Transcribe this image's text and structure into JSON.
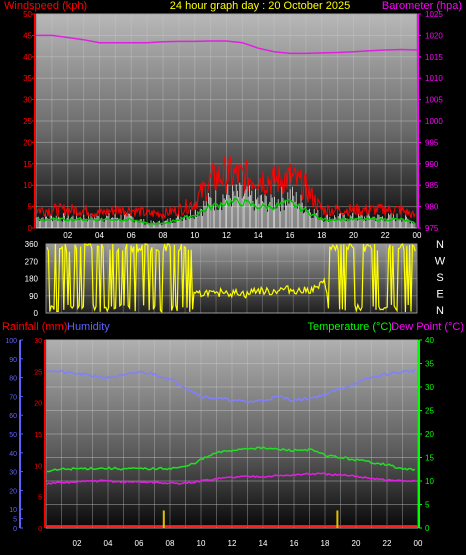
{
  "header": {
    "title": "24 hour graph day : 20 October 2025",
    "windspeed_label": "Windspeed (kph)",
    "barometer_label": "Barometer (hpa)",
    "rainfall_label": "Rainfall (mm)",
    "humidity_label": "Humidity",
    "temperature_label": "Temperature (°C)",
    "dewpoint_label": "Dew Point (°C)"
  },
  "colors": {
    "wind_gust": "#ff0000",
    "wind_avg": "#00c800",
    "wind_bg": "#ffffff",
    "barometer": "#e020e0",
    "direction": "#ffff00",
    "humidity": "#8080ff",
    "temperature": "#20e020",
    "dewpoint": "#e020e0",
    "rainfall": "#ff2020",
    "rain_bars": "#e0c000",
    "axis_red": "#ff0000",
    "axis_magenta": "#ff00ff",
    "axis_green": "#00ff00",
    "axis_blue": "#6060ff",
    "title": "#ffff00"
  },
  "chart_data": [
    {
      "type": "line",
      "name": "wind-barometer",
      "x_ticks": [
        "02",
        "04",
        "06",
        "08",
        "10",
        "12",
        "14",
        "16",
        "18",
        "20",
        "22",
        "00"
      ],
      "left_axis": {
        "label": "Windspeed (kph)",
        "range": [
          0,
          50
        ],
        "ticks": [
          "0",
          "5",
          "10",
          "15",
          "20",
          "25",
          "30",
          "35",
          "40",
          "45",
          "50"
        ]
      },
      "right_axis": {
        "label": "Barometer (hpa)",
        "range": [
          975,
          1025
        ],
        "ticks": [
          "975",
          "980",
          "985",
          "990",
          "995",
          "1000",
          "1005",
          "1010",
          "1015",
          "1020",
          "1025"
        ]
      },
      "series": [
        {
          "name": "Barometer",
          "axis": "right",
          "x": [
            0,
            1,
            2,
            3,
            4,
            5,
            6,
            7,
            8,
            9,
            10,
            11,
            12,
            13,
            14,
            15,
            16,
            17,
            18,
            19,
            20,
            21,
            22,
            23,
            24
          ],
          "values": [
            1020.0,
            1020.0,
            1019.5,
            1019.0,
            1018.3,
            1018.3,
            1018.3,
            1018.3,
            1018.5,
            1018.6,
            1018.6,
            1018.7,
            1018.7,
            1018.3,
            1017.0,
            1016.2,
            1015.8,
            1015.8,
            1015.9,
            1016.0,
            1016.2,
            1016.4,
            1016.6,
            1016.7,
            1016.6
          ]
        },
        {
          "name": "Wind gust",
          "axis": "left",
          "x": [
            0,
            1,
            2,
            3,
            4,
            5,
            6,
            7,
            8,
            9,
            10,
            11,
            12,
            13,
            14,
            15,
            16,
            17,
            18,
            19,
            20,
            21,
            22,
            23,
            24
          ],
          "values": [
            5,
            5,
            5,
            5,
            4,
            5,
            5,
            4,
            4,
            5,
            7,
            13,
            15,
            14,
            14,
            13,
            14,
            11,
            5,
            5,
            5,
            5,
            5,
            5,
            3
          ]
        },
        {
          "name": "Wind average",
          "axis": "left",
          "x": [
            0,
            1,
            2,
            3,
            4,
            5,
            6,
            7,
            8,
            9,
            10,
            11,
            12,
            13,
            14,
            15,
            16,
            17,
            18,
            19,
            20,
            21,
            22,
            23,
            24
          ],
          "values": [
            2,
            2,
            2,
            2,
            2,
            2,
            2,
            1,
            1,
            2,
            3,
            5,
            6,
            6,
            5,
            5,
            6,
            4,
            2,
            2,
            2,
            2,
            2,
            2,
            1
          ]
        }
      ]
    },
    {
      "type": "scatter",
      "name": "wind-direction",
      "x_ticks": [
        "02",
        "04",
        "06",
        "08",
        "10",
        "12",
        "14",
        "16",
        "18",
        "20",
        "22",
        "00"
      ],
      "left_axis": {
        "range": [
          0,
          360
        ],
        "ticks": [
          "0",
          "90",
          "180",
          "270",
          "360"
        ]
      },
      "right_labels": [
        "N",
        "W",
        "S",
        "E",
        "N"
      ],
      "series": [
        {
          "name": "Direction",
          "x": [
            0,
            0.5,
            1,
            1.5,
            2,
            2.5,
            3,
            3.5,
            4,
            4.5,
            5,
            5.5,
            6,
            6.5,
            7,
            7.5,
            8,
            8.5,
            9,
            9.5,
            10,
            10.5,
            11,
            11.5,
            12,
            12.5,
            13,
            13.5,
            14,
            14.5,
            15,
            15.5,
            16,
            16.5,
            17,
            17.5,
            18,
            18.5,
            19,
            19.5,
            20,
            20.5,
            21,
            21.5,
            22,
            22.5,
            23,
            23.5,
            24
          ],
          "values": [
            340,
            10,
            340,
            20,
            350,
            0,
            330,
            10,
            320,
            300,
            10,
            310,
            0,
            330,
            20,
            340,
            350,
            10,
            330,
            90,
            100,
            110,
            90,
            120,
            100,
            110,
            95,
            120,
            115,
            110,
            120,
            125,
            120,
            115,
            120,
            130,
            160,
            20,
            340,
            10,
            350,
            20,
            330,
            10,
            340,
            0,
            350,
            20,
            340
          ]
        }
      ]
    },
    {
      "type": "line",
      "name": "temperature-humidity",
      "x_ticks": [
        "02",
        "04",
        "06",
        "08",
        "10",
        "12",
        "14",
        "16",
        "18",
        "20",
        "22",
        "00"
      ],
      "left_axis_outer": {
        "label": "Humidity",
        "range": [
          0,
          100
        ],
        "ticks": [
          "0",
          "5",
          "10",
          "20",
          "30",
          "40",
          "50",
          "60",
          "70",
          "80",
          "90",
          "100"
        ]
      },
      "left_axis_inner": {
        "label": "Rainfall (mm)",
        "range": [
          0,
          30
        ],
        "ticks": [
          "0",
          "5",
          "10",
          "15",
          "20",
          "25",
          "30"
        ]
      },
      "right_axis": {
        "label": "Temperature (°C)",
        "range": [
          0,
          40
        ],
        "ticks": [
          "0",
          "5",
          "10",
          "15",
          "20",
          "25",
          "30",
          "35",
          "40"
        ]
      },
      "series": [
        {
          "name": "Humidity",
          "axis": "outer",
          "x": [
            0,
            1,
            2,
            3,
            4,
            5,
            6,
            7,
            8,
            9,
            10,
            11,
            12,
            13,
            14,
            15,
            16,
            17,
            18,
            19,
            20,
            21,
            22,
            23,
            24
          ],
          "values": [
            84,
            83,
            82,
            81,
            80,
            81,
            83,
            82,
            79,
            75,
            70,
            69,
            68,
            67,
            68,
            70,
            68,
            69,
            71,
            74,
            77,
            80,
            82,
            83,
            84
          ]
        },
        {
          "name": "Temperature",
          "axis": "right",
          "x": [
            0,
            1,
            2,
            3,
            4,
            5,
            6,
            7,
            8,
            9,
            10,
            11,
            12,
            13,
            14,
            15,
            16,
            17,
            18,
            19,
            20,
            21,
            22,
            23,
            24
          ],
          "values": [
            12,
            12.5,
            12.6,
            12.7,
            12.7,
            12.6,
            12.6,
            12.6,
            12.7,
            13,
            14.5,
            16,
            16.5,
            17,
            17,
            16.7,
            16.5,
            16.7,
            15.5,
            15,
            14.5,
            14,
            13.5,
            12.5,
            12.5
          ]
        },
        {
          "name": "Dew Point",
          "axis": "right",
          "x": [
            0,
            1,
            2,
            3,
            4,
            5,
            6,
            7,
            8,
            9,
            10,
            11,
            12,
            13,
            14,
            15,
            16,
            17,
            18,
            19,
            20,
            21,
            22,
            23,
            24
          ],
          "values": [
            9.5,
            9.6,
            9.8,
            10,
            10,
            9.8,
            9.8,
            9.7,
            9.5,
            9.5,
            10,
            10.5,
            10.8,
            11,
            11,
            11.1,
            11.3,
            11.5,
            11.5,
            11.2,
            11,
            10.6,
            10.2,
            10,
            10
          ]
        },
        {
          "name": "Rainfall",
          "axis": "inner",
          "x": [
            0,
            24
          ],
          "values": [
            0.3,
            0.3
          ]
        },
        {
          "name": "Rain rate",
          "x": [
            7.6,
            18.8
          ],
          "values": [
            2,
            2
          ]
        }
      ]
    }
  ]
}
